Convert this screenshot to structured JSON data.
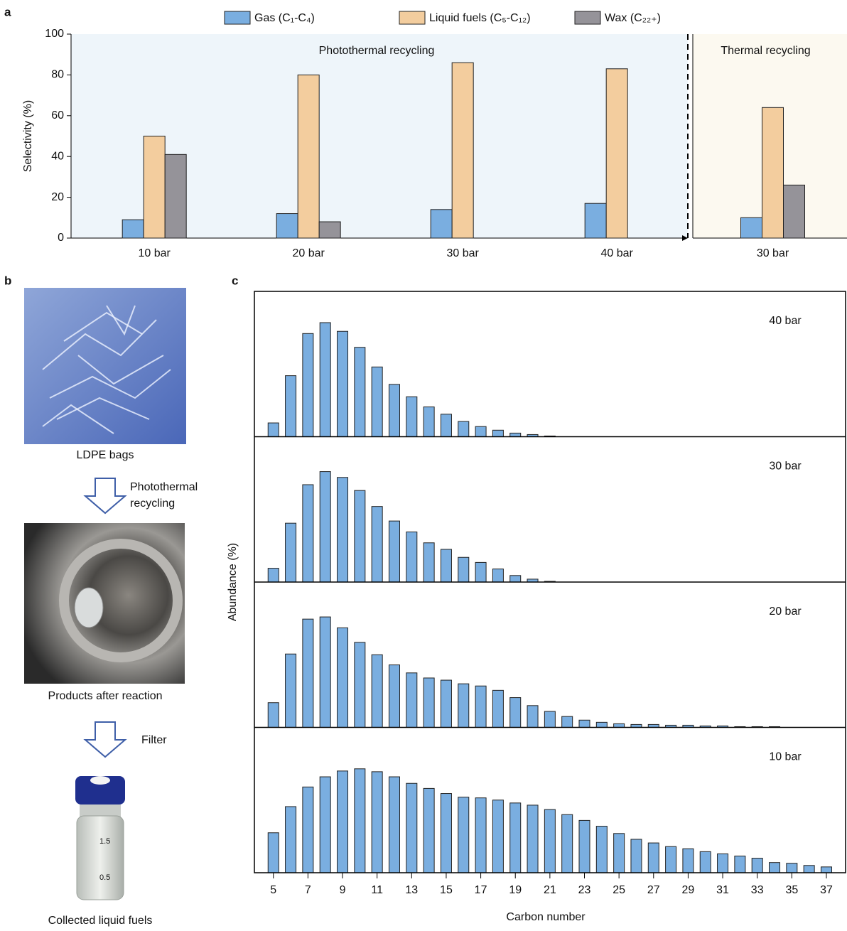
{
  "panel_b": {
    "label": "b",
    "captions": [
      "LDPE bags",
      "Products after reaction",
      "Collected liquid fuels"
    ],
    "steps": [
      {
        "lines": [
          "Photothermal",
          "recycling"
        ]
      },
      {
        "lines": [
          "Filter"
        ]
      }
    ],
    "vial_labels": [
      "1.5",
      "0.5"
    ]
  },
  "chart_data": [
    {
      "type": "bar",
      "panel_label": "a",
      "ylabel": "Selectivity (%)",
      "categories": [
        "10 bar",
        "20 bar",
        "30 bar",
        "40 bar",
        "30 bar"
      ],
      "regions": [
        {
          "label": "Photothermal recycling"
        },
        {
          "label": "Thermal recycling"
        }
      ],
      "series": [
        {
          "name": "Gas (C₁-C₄)",
          "color": "#7aaee0",
          "values": [
            9,
            12,
            14,
            17,
            10
          ]
        },
        {
          "name": "Liquid fuels (C₅-C₁₂)",
          "color": "#f3cd9e",
          "values": [
            50,
            80,
            86,
            83,
            64
          ]
        },
        {
          "name": "Wax (C₂₂₊)",
          "color": "#959399",
          "values": [
            41,
            8,
            null,
            null,
            26
          ]
        }
      ],
      "ylim": [
        0,
        100
      ],
      "yticks": [
        0,
        20,
        40,
        60,
        80,
        100
      ]
    },
    {
      "type": "bar",
      "panel_label": "c",
      "xlabel": "Carbon number",
      "ylabel": "Abundance (%)",
      "color": "#7aaee0",
      "xlim": [
        3.9,
        37.7
      ],
      "ylim": [
        0,
        20
      ],
      "xticks": [
        5,
        7,
        9,
        11,
        13,
        15,
        17,
        19,
        21,
        23,
        25,
        27,
        29,
        31,
        33,
        35,
        37
      ],
      "panels": [
        {
          "label": "40 bar",
          "x": [
            5,
            6,
            7,
            8,
            9,
            10,
            11,
            12,
            13,
            14,
            15,
            16,
            17,
            18,
            19,
            20,
            21
          ],
          "values": [
            1.9,
            8.4,
            14.2,
            15.7,
            14.5,
            12.3,
            9.6,
            7.2,
            5.5,
            4.1,
            3.1,
            2.1,
            1.4,
            0.9,
            0.5,
            0.3,
            0.1
          ]
        },
        {
          "label": "30 bar",
          "x": [
            5,
            6,
            7,
            8,
            9,
            10,
            11,
            12,
            13,
            14,
            15,
            16,
            17,
            18,
            19,
            20,
            21
          ],
          "values": [
            1.9,
            8.1,
            13.4,
            15.2,
            14.4,
            12.6,
            10.4,
            8.4,
            6.9,
            5.4,
            4.5,
            3.4,
            2.7,
            1.8,
            0.9,
            0.4,
            0.1
          ]
        },
        {
          "label": "20 bar",
          "x": [
            5,
            6,
            7,
            8,
            9,
            10,
            11,
            12,
            13,
            14,
            15,
            16,
            17,
            18,
            19,
            20,
            21,
            22,
            23,
            24,
            25,
            26,
            27,
            28,
            29,
            30,
            31,
            32,
            33,
            34
          ],
          "values": [
            3.4,
            10.1,
            14.9,
            15.2,
            13.7,
            11.7,
            10.0,
            8.6,
            7.5,
            6.8,
            6.5,
            6.0,
            5.7,
            5.1,
            4.1,
            3.0,
            2.2,
            1.5,
            1.0,
            0.7,
            0.5,
            0.4,
            0.4,
            0.3,
            0.3,
            0.2,
            0.2,
            0.1,
            0.1,
            0.1
          ]
        },
        {
          "label": "10 bar",
          "x": [
            5,
            6,
            7,
            8,
            9,
            10,
            11,
            12,
            13,
            14,
            15,
            16,
            17,
            18,
            19,
            20,
            21,
            22,
            23,
            24,
            25,
            26,
            27,
            28,
            29,
            30,
            31,
            32,
            33,
            34,
            35,
            36,
            37
          ],
          "values": [
            5.5,
            9.1,
            11.8,
            13.2,
            14.0,
            14.3,
            13.9,
            13.2,
            12.3,
            11.6,
            10.9,
            10.4,
            10.3,
            10.0,
            9.6,
            9.3,
            8.7,
            8.0,
            7.2,
            6.4,
            5.4,
            4.6,
            4.1,
            3.6,
            3.3,
            2.9,
            2.6,
            2.3,
            2.0,
            1.4,
            1.3,
            1.0,
            0.8
          ]
        }
      ]
    }
  ]
}
